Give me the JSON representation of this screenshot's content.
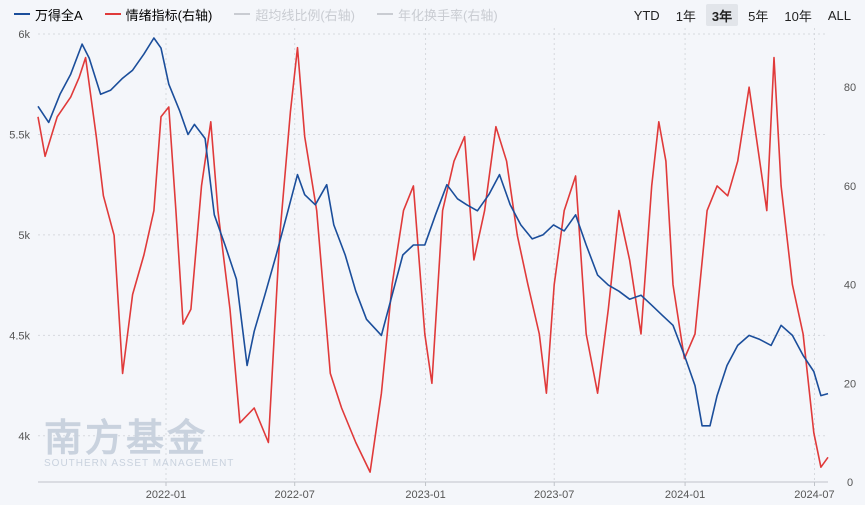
{
  "legend": {
    "items": [
      {
        "label": "万得全A",
        "color": "#1b4e9b",
        "active": true
      },
      {
        "label": "情绪指标(右轴)",
        "color": "#e03a3a",
        "active": true
      },
      {
        "label": "超均线比例(右轴)",
        "color": "#c9ccd2",
        "active": false
      },
      {
        "label": "年化换手率(右轴)",
        "color": "#c9ccd2",
        "active": false
      }
    ]
  },
  "range_buttons": [
    {
      "label": "YTD",
      "active": false
    },
    {
      "label": "1年",
      "active": false
    },
    {
      "label": "3年",
      "active": true
    },
    {
      "label": "5年",
      "active": false
    },
    {
      "label": "10年",
      "active": false
    },
    {
      "label": "ALL",
      "active": false
    }
  ],
  "watermark": {
    "cn": "南方基金",
    "en": "SOUTHERN ASSET MANAGEMENT"
  },
  "colors": {
    "index_line": "#1b4e9b",
    "sentiment_line": "#e03a3a",
    "grid": "#d6d9de",
    "axis_text": "#555555"
  },
  "chart_data": {
    "type": "line",
    "x_ticks": [
      "2022-01",
      "2022-07",
      "2023-01",
      "2023-07",
      "2024-01",
      "2024-07"
    ],
    "x_range": [
      "2021-07-05",
      "2024-07-20"
    ],
    "y_left": {
      "ticks": [
        "4k",
        "4.5k",
        "5k",
        "5.5k",
        "6k"
      ],
      "tick_values": [
        4000,
        4500,
        5000,
        5500,
        6000
      ],
      "range": [
        3770,
        6030
      ]
    },
    "y_right": {
      "ticks": [
        "0",
        "20",
        "40",
        "60",
        "80"
      ],
      "tick_values": [
        0,
        20,
        40,
        60,
        80
      ],
      "range": [
        0,
        92
      ]
    },
    "grid": true,
    "series": [
      {
        "name": "万得全A",
        "axis": "left",
        "points": [
          [
            "2021-07-05",
            5640
          ],
          [
            "2021-07-20",
            5560
          ],
          [
            "2021-08-05",
            5700
          ],
          [
            "2021-08-20",
            5800
          ],
          [
            "2021-09-05",
            5950
          ],
          [
            "2021-09-15",
            5880
          ],
          [
            "2021-10-01",
            5700
          ],
          [
            "2021-10-15",
            5720
          ],
          [
            "2021-11-01",
            5780
          ],
          [
            "2021-11-15",
            5820
          ],
          [
            "2021-12-01",
            5900
          ],
          [
            "2021-12-15",
            5980
          ],
          [
            "2021-12-25",
            5930
          ],
          [
            "2022-01-05",
            5750
          ],
          [
            "2022-01-20",
            5620
          ],
          [
            "2022-02-01",
            5500
          ],
          [
            "2022-02-10",
            5550
          ],
          [
            "2022-02-25",
            5480
          ],
          [
            "2022-03-10",
            5100
          ],
          [
            "2022-03-25",
            4950
          ],
          [
            "2022-04-10",
            4780
          ],
          [
            "2022-04-25",
            4350
          ],
          [
            "2022-05-05",
            4520
          ],
          [
            "2022-05-20",
            4700
          ],
          [
            "2022-06-05",
            4900
          ],
          [
            "2022-06-20",
            5100
          ],
          [
            "2022-07-05",
            5300
          ],
          [
            "2022-07-15",
            5200
          ],
          [
            "2022-07-30",
            5150
          ],
          [
            "2022-08-15",
            5250
          ],
          [
            "2022-08-25",
            5050
          ],
          [
            "2022-09-10",
            4900
          ],
          [
            "2022-09-25",
            4720
          ],
          [
            "2022-10-10",
            4580
          ],
          [
            "2022-10-31",
            4500
          ],
          [
            "2022-11-15",
            4700
          ],
          [
            "2022-11-30",
            4900
          ],
          [
            "2022-12-15",
            4950
          ],
          [
            "2022-12-31",
            4950
          ],
          [
            "2023-01-15",
            5100
          ],
          [
            "2023-01-31",
            5250
          ],
          [
            "2023-02-15",
            5180
          ],
          [
            "2023-02-28",
            5150
          ],
          [
            "2023-03-15",
            5120
          ],
          [
            "2023-03-31",
            5200
          ],
          [
            "2023-04-15",
            5300
          ],
          [
            "2023-04-30",
            5150
          ],
          [
            "2023-05-15",
            5050
          ],
          [
            "2023-05-31",
            4980
          ],
          [
            "2023-06-15",
            5000
          ],
          [
            "2023-06-30",
            5050
          ],
          [
            "2023-07-15",
            5020
          ],
          [
            "2023-07-31",
            5100
          ],
          [
            "2023-08-15",
            4950
          ],
          [
            "2023-08-31",
            4800
          ],
          [
            "2023-09-15",
            4750
          ],
          [
            "2023-09-30",
            4720
          ],
          [
            "2023-10-15",
            4680
          ],
          [
            "2023-10-31",
            4700
          ],
          [
            "2023-11-15",
            4650
          ],
          [
            "2023-11-30",
            4600
          ],
          [
            "2023-12-15",
            4550
          ],
          [
            "2023-12-31",
            4400
          ],
          [
            "2024-01-15",
            4250
          ],
          [
            "2024-01-25",
            4050
          ],
          [
            "2024-02-05",
            4050
          ],
          [
            "2024-02-15",
            4200
          ],
          [
            "2024-02-29",
            4350
          ],
          [
            "2024-03-15",
            4450
          ],
          [
            "2024-03-31",
            4500
          ],
          [
            "2024-04-15",
            4480
          ],
          [
            "2024-05-01",
            4450
          ],
          [
            "2024-05-15",
            4550
          ],
          [
            "2024-05-31",
            4500
          ],
          [
            "2024-06-15",
            4400
          ],
          [
            "2024-06-30",
            4320
          ],
          [
            "2024-07-10",
            4200
          ],
          [
            "2024-07-20",
            4210
          ]
        ]
      },
      {
        "name": "情绪指标(右轴)",
        "axis": "right",
        "points": [
          [
            "2021-07-05",
            74
          ],
          [
            "2021-07-15",
            66
          ],
          [
            "2021-08-01",
            74
          ],
          [
            "2021-08-20",
            78
          ],
          [
            "2021-09-01",
            82
          ],
          [
            "2021-09-10",
            86
          ],
          [
            "2021-09-25",
            70
          ],
          [
            "2021-10-05",
            58
          ],
          [
            "2021-10-20",
            50
          ],
          [
            "2021-11-01",
            22
          ],
          [
            "2021-11-15",
            38
          ],
          [
            "2021-12-01",
            46
          ],
          [
            "2021-12-15",
            55
          ],
          [
            "2021-12-25",
            74
          ],
          [
            "2022-01-05",
            76
          ],
          [
            "2022-01-15",
            55
          ],
          [
            "2022-01-25",
            32
          ],
          [
            "2022-02-05",
            35
          ],
          [
            "2022-02-20",
            60
          ],
          [
            "2022-03-05",
            73
          ],
          [
            "2022-03-15",
            55
          ],
          [
            "2022-04-01",
            35
          ],
          [
            "2022-04-15",
            12
          ],
          [
            "2022-05-05",
            15
          ],
          [
            "2022-05-25",
            8
          ],
          [
            "2022-06-10",
            50
          ],
          [
            "2022-06-25",
            75
          ],
          [
            "2022-07-05",
            88
          ],
          [
            "2022-07-15",
            70
          ],
          [
            "2022-08-01",
            55
          ],
          [
            "2022-08-20",
            22
          ],
          [
            "2022-09-05",
            15
          ],
          [
            "2022-09-25",
            8
          ],
          [
            "2022-10-15",
            2
          ],
          [
            "2022-10-31",
            18
          ],
          [
            "2022-11-15",
            40
          ],
          [
            "2022-12-01",
            55
          ],
          [
            "2022-12-15",
            60
          ],
          [
            "2022-12-31",
            30
          ],
          [
            "2023-01-10",
            20
          ],
          [
            "2023-01-25",
            55
          ],
          [
            "2023-02-10",
            65
          ],
          [
            "2023-02-25",
            70
          ],
          [
            "2023-03-10",
            45
          ],
          [
            "2023-03-25",
            55
          ],
          [
            "2023-04-10",
            72
          ],
          [
            "2023-04-25",
            65
          ],
          [
            "2023-05-10",
            50
          ],
          [
            "2023-05-25",
            40
          ],
          [
            "2023-06-10",
            30
          ],
          [
            "2023-06-20",
            18
          ],
          [
            "2023-07-01",
            40
          ],
          [
            "2023-07-15",
            55
          ],
          [
            "2023-07-31",
            62
          ],
          [
            "2023-08-15",
            30
          ],
          [
            "2023-08-31",
            18
          ],
          [
            "2023-09-15",
            35
          ],
          [
            "2023-09-30",
            55
          ],
          [
            "2023-10-15",
            45
          ],
          [
            "2023-10-31",
            30
          ],
          [
            "2023-11-15",
            60
          ],
          [
            "2023-11-25",
            73
          ],
          [
            "2023-12-05",
            65
          ],
          [
            "2023-12-15",
            40
          ],
          [
            "2023-12-31",
            25
          ],
          [
            "2024-01-15",
            30
          ],
          [
            "2024-02-01",
            55
          ],
          [
            "2024-02-15",
            60
          ],
          [
            "2024-03-01",
            58
          ],
          [
            "2024-03-15",
            65
          ],
          [
            "2024-03-31",
            80
          ],
          [
            "2024-04-10",
            70
          ],
          [
            "2024-04-25",
            55
          ],
          [
            "2024-05-05",
            86
          ],
          [
            "2024-05-15",
            60
          ],
          [
            "2024-05-31",
            40
          ],
          [
            "2024-06-15",
            30
          ],
          [
            "2024-06-30",
            10
          ],
          [
            "2024-07-10",
            3
          ],
          [
            "2024-07-20",
            5
          ]
        ]
      }
    ]
  }
}
